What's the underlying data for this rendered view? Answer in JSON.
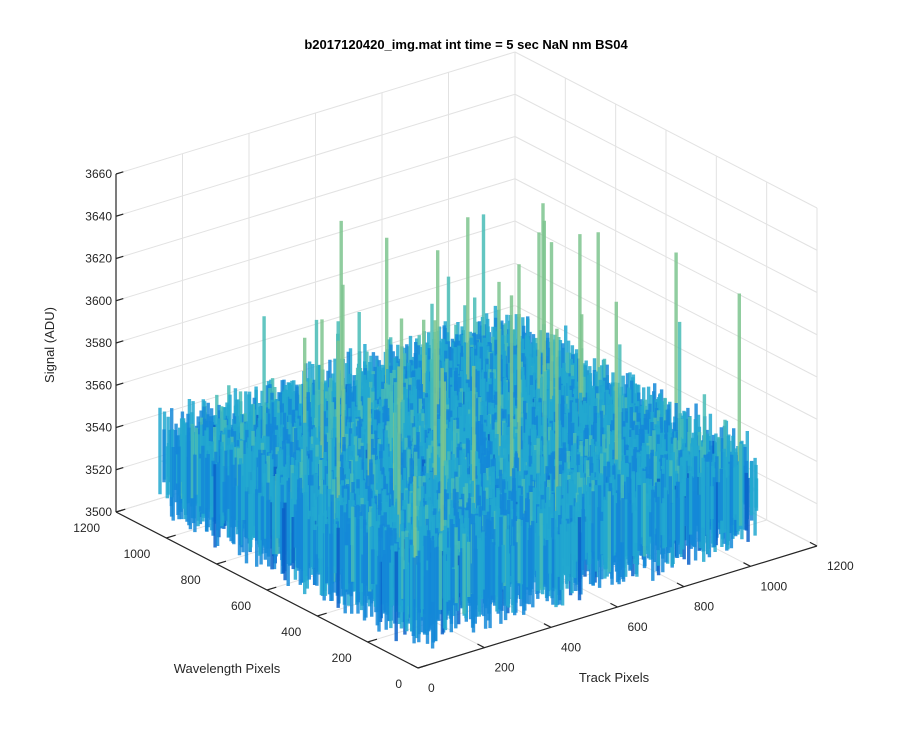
{
  "chart_data": {
    "type": "surface",
    "title": "b2017120420_img.mat int time = 5 sec  NaN nm BS04",
    "xlabel": "Track Pixels",
    "ylabel": "Wavelength Pixels",
    "zlabel": "Signal (ADU)",
    "xlim": [
      0,
      1200
    ],
    "ylim": [
      0,
      1200
    ],
    "zlim": [
      3500,
      3660
    ],
    "x_ticks": [
      "0",
      "200",
      "400",
      "600",
      "800",
      "1000",
      "1200"
    ],
    "y_ticks": [
      "0",
      "200",
      "400",
      "600",
      "800",
      "1000",
      "1200"
    ],
    "z_ticks": [
      "3500",
      "3520",
      "3540",
      "3560",
      "3580",
      "3600",
      "3620",
      "3640",
      "3660"
    ],
    "surface": {
      "x_range": [
        0,
        1024
      ],
      "y_range": [
        0,
        1024
      ],
      "mean_signal": 3535,
      "noise_min": 3510,
      "noise_max": 3570,
      "spike_max": 3640,
      "colormap": [
        "#0a62c9",
        "#1488d8",
        "#22a8d0",
        "#48bcb6",
        "#7cc48e"
      ]
    },
    "grid": true,
    "colors": {
      "axis": "#262626",
      "grid": "#e2e2e2"
    }
  }
}
